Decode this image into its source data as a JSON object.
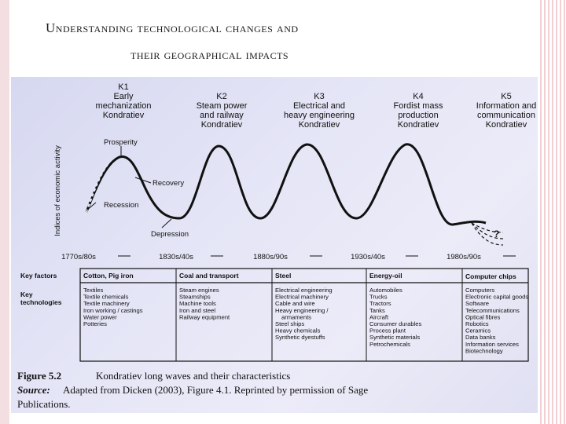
{
  "slide": {
    "title_line1": "Understanding technological changes and",
    "title_line2": "their geographical impacts"
  },
  "waves": [
    {
      "id": "K1",
      "lines": [
        "Early",
        "mechanization",
        "Kondratiev"
      ]
    },
    {
      "id": "K2",
      "lines": [
        "Steam power",
        "and railway",
        "Kondratiev"
      ]
    },
    {
      "id": "K3",
      "lines": [
        "Electrical and",
        "heavy engineering",
        "Kondratiev"
      ]
    },
    {
      "id": "K4",
      "lines": [
        "Fordist mass",
        "production",
        "Kondratiev"
      ]
    },
    {
      "id": "K5",
      "lines": [
        "Information and",
        "communication",
        "Kondratiev"
      ]
    }
  ],
  "annotations": {
    "prosperity": "Prosperity",
    "recovery": "Recovery",
    "recession": "Recession",
    "depression": "Depression",
    "question": "?"
  },
  "axis": {
    "ylabel": "Indices of economic activity",
    "eras": [
      "1770s/80s",
      "1830s/40s",
      "1880s/90s",
      "1930s/40s",
      "1980s/90s"
    ]
  },
  "table": {
    "key_factors_label": "Key factors",
    "key_technologies_label": [
      "Key",
      "technologies"
    ],
    "columns": [
      {
        "factor": "Cotton, Pig iron",
        "technologies": [
          "Textiles",
          "Textile chemicals",
          "Textile machinery",
          "Iron working / castings",
          "Water power",
          "Potteries"
        ]
      },
      {
        "factor": "Coal and transport",
        "technologies": [
          "Steam engines",
          "Steamships",
          "Machine tools",
          "Iron and steel",
          "Railway equipment"
        ]
      },
      {
        "factor": "Steel",
        "technologies": [
          "Electrical engineering",
          "Electrical machinery",
          "Cable and wire",
          "Heavy engineering /",
          "armaments",
          "Steel ships",
          "Heavy chemicals",
          "Synthetic dyestuffs"
        ]
      },
      {
        "factor": "Energy-oil",
        "technologies": [
          "Automobiles",
          "Trucks",
          "Tractors",
          "Tanks",
          "Aircraft",
          "Consumer durables",
          "Process plant",
          "Synthetic materials",
          "Petrochemicals"
        ]
      },
      {
        "factor": "Computer chips",
        "technologies": [
          "Computers",
          "Electronic capital goods",
          "Software",
          "Telecommunications",
          "Optical fibres",
          "Robotics",
          "Ceramics",
          "Data banks",
          "Information services",
          "Biotechnology"
        ]
      }
    ]
  },
  "caption": {
    "figure_label": "Figure 5.2",
    "figure_text": "Kondratiev long waves and their characteristics",
    "source_label": "Source:",
    "source_text": "Adapted from Dicken (2003), Figure 4.1. Reprinted by permission of Sage",
    "source_text2": "Publications."
  }
}
